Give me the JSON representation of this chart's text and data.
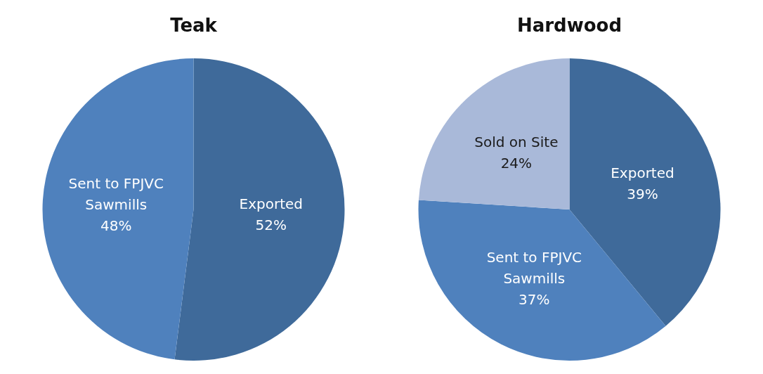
{
  "chart_data": [
    {
      "type": "pie",
      "title": "Teak",
      "categories": [
        "Exported",
        "Sent to FPJVC Sawmills"
      ],
      "values": [
        52,
        48
      ],
      "colors": [
        "#3f6a9a",
        "#4f81bd"
      ],
      "value_labels": [
        "52%",
        "48%"
      ],
      "legend": false
    },
    {
      "type": "pie",
      "title": "Hardwood",
      "categories": [
        "Exported",
        "Sent to FPJVC Sawmills",
        "Sold on Site"
      ],
      "values": [
        39,
        37,
        24
      ],
      "colors": [
        "#3f6a9a",
        "#4f81bd",
        "#a9b9d9"
      ],
      "value_labels": [
        "39%",
        "37%",
        "24%"
      ],
      "legend": false
    }
  ]
}
